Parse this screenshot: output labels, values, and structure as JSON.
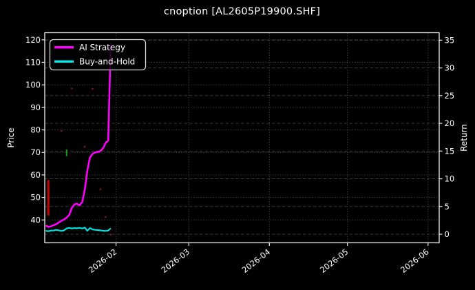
{
  "chart_data": {
    "type": "line",
    "title": "cnoption [AL2605P19900.SHF]",
    "background": "#000000",
    "text_color": "#ffffff",
    "grid_color": "#4d4d4d",
    "frame_color": "#f0f0f0",
    "legend": {
      "position": "upper-left"
    },
    "x_axis": {
      "range": [
        "2026-01-04T14:24:00Z",
        "2026-06-05T07:12:00Z"
      ],
      "ticks": [
        {
          "label": "2026-02",
          "date": "2026-02-01"
        },
        {
          "label": "2026-03",
          "date": "2026-03-01"
        },
        {
          "label": "2026-04",
          "date": "2026-04-01"
        },
        {
          "label": "2026-05",
          "date": "2026-05-01"
        },
        {
          "label": "2026-06",
          "date": "2026-06-01"
        }
      ]
    },
    "left_axis": {
      "label": "Price",
      "ticks": [
        40,
        50,
        60,
        70,
        80,
        90,
        100,
        110,
        120
      ],
      "range": [
        29.85,
        123.15
      ]
    },
    "right_axis": {
      "label": "Return",
      "ticks": [
        0,
        5,
        10,
        15,
        20,
        25,
        30,
        35
      ],
      "range": [
        -1.55,
        36.35
      ]
    },
    "series": [
      {
        "name": "AI Strategy",
        "color": "#ff00ff",
        "width": 2.6,
        "axis": "left",
        "points": [
          [
            "2026-01-05",
            37.6
          ],
          [
            "2026-01-06",
            36.9
          ],
          [
            "2026-01-07",
            37.2
          ],
          [
            "2026-01-08",
            37.7
          ],
          [
            "2026-01-09",
            38.1
          ],
          [
            "2026-01-10",
            38.9
          ],
          [
            "2026-01-11",
            39.6
          ],
          [
            "2026-01-12",
            40.2
          ],
          [
            "2026-01-13",
            41.0
          ],
          [
            "2026-01-14",
            42.2
          ],
          [
            "2026-01-15",
            45.3
          ],
          [
            "2026-01-16",
            46.9
          ],
          [
            "2026-01-17",
            47.2
          ],
          [
            "2026-01-18",
            46.5
          ],
          [
            "2026-01-19",
            48.0
          ],
          [
            "2026-01-20",
            53.5
          ],
          [
            "2026-01-21",
            62.0
          ],
          [
            "2026-01-22",
            67.8
          ],
          [
            "2026-01-23",
            69.3
          ],
          [
            "2026-01-24",
            70.0
          ],
          [
            "2026-01-25",
            70.2
          ],
          [
            "2026-01-26",
            70.6
          ],
          [
            "2026-01-27",
            71.8
          ],
          [
            "2026-01-28",
            74.2
          ],
          [
            "2026-01-29",
            75.2
          ],
          [
            "2026-01-30",
            118.5
          ]
        ]
      },
      {
        "name": "Buy-and-Hold",
        "color": "#00e5e5",
        "width": 2.2,
        "axis": "left",
        "points": [
          [
            "2026-01-05",
            35.2
          ],
          [
            "2026-01-06",
            35.0
          ],
          [
            "2026-01-07",
            35.3
          ],
          [
            "2026-01-08",
            35.3
          ],
          [
            "2026-01-09",
            35.6
          ],
          [
            "2026-01-10",
            35.4
          ],
          [
            "2026-01-11",
            35.1
          ],
          [
            "2026-01-12",
            35.4
          ],
          [
            "2026-01-13",
            36.2
          ],
          [
            "2026-01-14",
            36.5
          ],
          [
            "2026-01-15",
            36.2
          ],
          [
            "2026-01-16",
            36.4
          ],
          [
            "2026-01-17",
            36.3
          ],
          [
            "2026-01-18",
            36.5
          ],
          [
            "2026-01-19",
            36.2
          ],
          [
            "2026-01-20",
            36.6
          ],
          [
            "2026-01-21",
            35.2
          ],
          [
            "2026-01-22",
            36.4
          ],
          [
            "2026-01-23",
            35.8
          ],
          [
            "2026-01-24",
            35.6
          ],
          [
            "2026-01-25",
            35.5
          ],
          [
            "2026-01-26",
            35.4
          ],
          [
            "2026-01-27",
            35.2
          ],
          [
            "2026-01-28",
            35.1
          ],
          [
            "2026-01-29",
            35.3
          ],
          [
            "2026-01-30",
            36.3
          ]
        ]
      }
    ],
    "annotations": {
      "bars": [
        {
          "date": "2026-01-06",
          "from": 42.0,
          "to": 57.7,
          "color": "#cc0000",
          "width": 3
        },
        {
          "date": "2026-01-13",
          "from": 68.3,
          "to": 71.3,
          "color": "#0f9b0f",
          "width": 2
        }
      ],
      "dots": {
        "color": "#8b1a1a",
        "radius": 1.3,
        "points": [
          [
            "2026-01-11",
            79.5
          ],
          [
            "2026-01-15",
            98.4
          ],
          [
            "2026-01-20",
            72.5
          ],
          [
            "2026-01-23",
            98.2
          ],
          [
            "2026-01-26",
            53.6
          ],
          [
            "2026-01-28",
            41.3
          ],
          [
            "2026-01-30",
            33.5
          ]
        ]
      }
    }
  }
}
